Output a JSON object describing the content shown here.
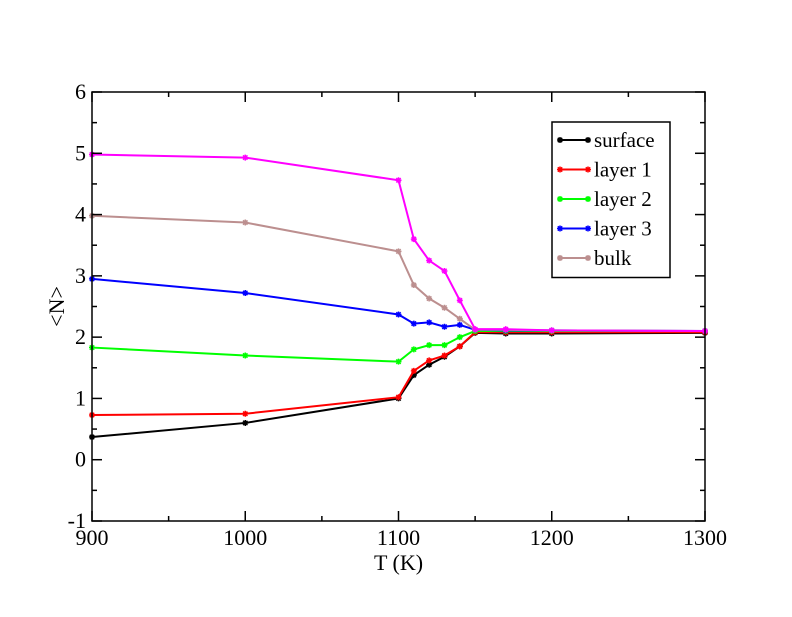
{
  "chart_data": {
    "type": "line",
    "title": "",
    "xlabel": "T (K)",
    "ylabel": "<N>",
    "xlim": [
      900,
      1300
    ],
    "ylim": [
      -1,
      6
    ],
    "x_ticks": [
      900,
      1000,
      1100,
      1200,
      1300
    ],
    "y_ticks": [
      -1,
      0,
      1,
      2,
      3,
      4,
      5,
      6
    ],
    "grid": false,
    "legend_position": "top-right",
    "series": [
      {
        "name": "surface",
        "color": "#000000",
        "x": [
          900,
          1000,
          1100,
          1110,
          1120,
          1130,
          1140,
          1150,
          1170,
          1200,
          1300
        ],
        "values": [
          0.37,
          0.6,
          1.0,
          1.38,
          1.55,
          1.68,
          1.85,
          2.07,
          2.06,
          2.06,
          2.07
        ]
      },
      {
        "name": "layer 1",
        "color": "#ff0000",
        "x": [
          900,
          1000,
          1100,
          1110,
          1120,
          1130,
          1140,
          1150,
          1170,
          1200,
          1300
        ],
        "values": [
          0.73,
          0.75,
          1.02,
          1.45,
          1.62,
          1.7,
          1.85,
          2.08,
          2.08,
          2.08,
          2.08
        ]
      },
      {
        "name": "layer 2",
        "color": "#00ff00",
        "x": [
          900,
          1000,
          1100,
          1110,
          1120,
          1130,
          1140,
          1150,
          1170,
          1200,
          1300
        ],
        "values": [
          1.83,
          1.7,
          1.6,
          1.8,
          1.87,
          1.87,
          2.0,
          2.1,
          2.1,
          2.1,
          2.1
        ]
      },
      {
        "name": "layer 3",
        "color": "#0000ff",
        "x": [
          900,
          1000,
          1100,
          1110,
          1120,
          1130,
          1140,
          1150,
          1170,
          1200,
          1300
        ],
        "values": [
          2.95,
          2.72,
          2.37,
          2.22,
          2.24,
          2.17,
          2.2,
          2.12,
          2.11,
          2.11,
          2.1
        ]
      },
      {
        "name": "bulk",
        "color": "#bc8f8f",
        "x": [
          900,
          1000,
          1100,
          1110,
          1120,
          1130,
          1140,
          1150,
          1170,
          1200,
          1300
        ],
        "values": [
          3.98,
          3.87,
          3.4,
          2.85,
          2.63,
          2.48,
          2.3,
          2.12,
          2.12,
          2.11,
          2.1
        ]
      },
      {
        "name": "",
        "color": "#ff00ff",
        "x": [
          900,
          1000,
          1100,
          1110,
          1120,
          1130,
          1140,
          1150,
          1170,
          1200,
          1300
        ],
        "values": [
          4.98,
          4.93,
          4.56,
          3.6,
          3.25,
          3.08,
          2.6,
          2.13,
          2.13,
          2.11,
          2.1
        ]
      }
    ]
  }
}
